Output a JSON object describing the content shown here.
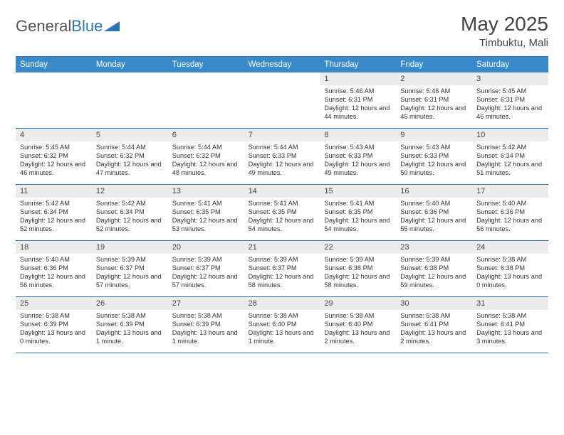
{
  "brand": {
    "part1": "General",
    "part2": "Blue"
  },
  "title": "May 2025",
  "location": "Timbuktu, Mali",
  "day_headers": [
    "Sunday",
    "Monday",
    "Tuesday",
    "Wednesday",
    "Thursday",
    "Friday",
    "Saturday"
  ],
  "colors": {
    "header_bar": "#3a8ac9",
    "rule": "#2e74b5",
    "daynum_bg": "#ececec",
    "text": "#333333"
  },
  "weeks": [
    [
      {
        "n": "",
        "sr": "",
        "ss": "",
        "dl": ""
      },
      {
        "n": "",
        "sr": "",
        "ss": "",
        "dl": ""
      },
      {
        "n": "",
        "sr": "",
        "ss": "",
        "dl": ""
      },
      {
        "n": "",
        "sr": "",
        "ss": "",
        "dl": ""
      },
      {
        "n": "1",
        "sr": "5:46 AM",
        "ss": "6:31 PM",
        "dl": "12 hours and 44 minutes."
      },
      {
        "n": "2",
        "sr": "5:46 AM",
        "ss": "6:31 PM",
        "dl": "12 hours and 45 minutes."
      },
      {
        "n": "3",
        "sr": "5:45 AM",
        "ss": "6:31 PM",
        "dl": "12 hours and 46 minutes."
      }
    ],
    [
      {
        "n": "4",
        "sr": "5:45 AM",
        "ss": "6:32 PM",
        "dl": "12 hours and 46 minutes."
      },
      {
        "n": "5",
        "sr": "5:44 AM",
        "ss": "6:32 PM",
        "dl": "12 hours and 47 minutes."
      },
      {
        "n": "6",
        "sr": "5:44 AM",
        "ss": "6:32 PM",
        "dl": "12 hours and 48 minutes."
      },
      {
        "n": "7",
        "sr": "5:44 AM",
        "ss": "6:33 PM",
        "dl": "12 hours and 49 minutes."
      },
      {
        "n": "8",
        "sr": "5:43 AM",
        "ss": "6:33 PM",
        "dl": "12 hours and 49 minutes."
      },
      {
        "n": "9",
        "sr": "5:43 AM",
        "ss": "6:33 PM",
        "dl": "12 hours and 50 minutes."
      },
      {
        "n": "10",
        "sr": "5:42 AM",
        "ss": "6:34 PM",
        "dl": "12 hours and 51 minutes."
      }
    ],
    [
      {
        "n": "11",
        "sr": "5:42 AM",
        "ss": "6:34 PM",
        "dl": "12 hours and 52 minutes."
      },
      {
        "n": "12",
        "sr": "5:42 AM",
        "ss": "6:34 PM",
        "dl": "12 hours and 52 minutes."
      },
      {
        "n": "13",
        "sr": "5:41 AM",
        "ss": "6:35 PM",
        "dl": "12 hours and 53 minutes."
      },
      {
        "n": "14",
        "sr": "5:41 AM",
        "ss": "6:35 PM",
        "dl": "12 hours and 54 minutes."
      },
      {
        "n": "15",
        "sr": "5:41 AM",
        "ss": "6:35 PM",
        "dl": "12 hours and 54 minutes."
      },
      {
        "n": "16",
        "sr": "5:40 AM",
        "ss": "6:36 PM",
        "dl": "12 hours and 55 minutes."
      },
      {
        "n": "17",
        "sr": "5:40 AM",
        "ss": "6:36 PM",
        "dl": "12 hours and 56 minutes."
      }
    ],
    [
      {
        "n": "18",
        "sr": "5:40 AM",
        "ss": "6:36 PM",
        "dl": "12 hours and 56 minutes."
      },
      {
        "n": "19",
        "sr": "5:39 AM",
        "ss": "6:37 PM",
        "dl": "12 hours and 57 minutes."
      },
      {
        "n": "20",
        "sr": "5:39 AM",
        "ss": "6:37 PM",
        "dl": "12 hours and 57 minutes."
      },
      {
        "n": "21",
        "sr": "5:39 AM",
        "ss": "6:37 PM",
        "dl": "12 hours and 58 minutes."
      },
      {
        "n": "22",
        "sr": "5:39 AM",
        "ss": "6:38 PM",
        "dl": "12 hours and 58 minutes."
      },
      {
        "n": "23",
        "sr": "5:39 AM",
        "ss": "6:38 PM",
        "dl": "12 hours and 59 minutes."
      },
      {
        "n": "24",
        "sr": "5:38 AM",
        "ss": "6:38 PM",
        "dl": "13 hours and 0 minutes."
      }
    ],
    [
      {
        "n": "25",
        "sr": "5:38 AM",
        "ss": "6:39 PM",
        "dl": "13 hours and 0 minutes."
      },
      {
        "n": "26",
        "sr": "5:38 AM",
        "ss": "6:39 PM",
        "dl": "13 hours and 1 minute."
      },
      {
        "n": "27",
        "sr": "5:38 AM",
        "ss": "6:39 PM",
        "dl": "13 hours and 1 minute."
      },
      {
        "n": "28",
        "sr": "5:38 AM",
        "ss": "6:40 PM",
        "dl": "13 hours and 1 minute."
      },
      {
        "n": "29",
        "sr": "5:38 AM",
        "ss": "6:40 PM",
        "dl": "13 hours and 2 minutes."
      },
      {
        "n": "30",
        "sr": "5:38 AM",
        "ss": "6:41 PM",
        "dl": "13 hours and 2 minutes."
      },
      {
        "n": "31",
        "sr": "5:38 AM",
        "ss": "6:41 PM",
        "dl": "13 hours and 3 minutes."
      }
    ]
  ],
  "labels": {
    "sunrise": "Sunrise:",
    "sunset": "Sunset:",
    "daylight": "Daylight:"
  }
}
